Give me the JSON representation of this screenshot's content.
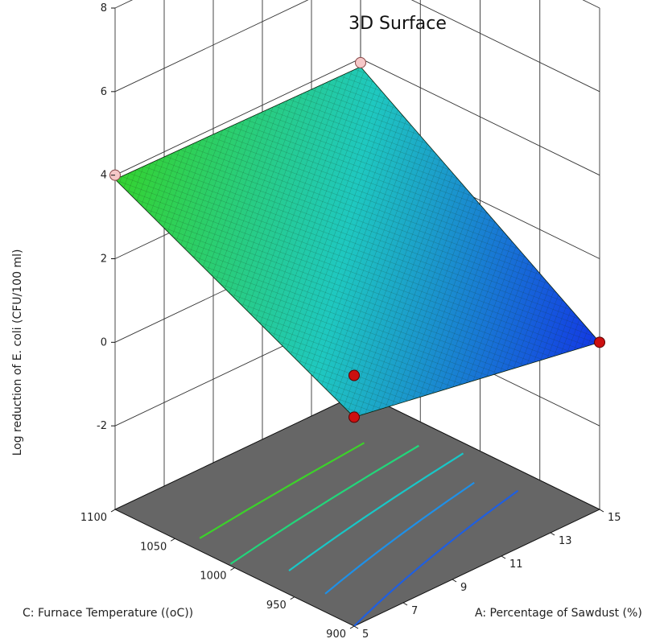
{
  "chart_data": {
    "type": "surface",
    "title": "3D Surface",
    "zlabel": "Log reduction of E. coli (CFU/100 ml)",
    "xlabel": "A: Percentage of Sawdust (%)",
    "ylabel": "C: Furnace Temperature ((oC))",
    "z_ticks": [
      "-2",
      "0",
      "2",
      "4",
      "6",
      "8"
    ],
    "x_ticks": [
      "5",
      "7",
      "9",
      "11",
      "13",
      "15"
    ],
    "y_ticks": [
      "900",
      "950",
      "1000",
      "1050",
      "1100"
    ],
    "zlim": [
      -2,
      8
    ],
    "xlim": [
      5,
      15
    ],
    "ylim": [
      900,
      1100
    ],
    "surface_corners": [
      {
        "A": 5,
        "C": 1100,
        "z": 3.9
      },
      {
        "A": 15,
        "C": 1100,
        "z": 3.8
      },
      {
        "A": 15,
        "C": 900,
        "z": 0.0
      },
      {
        "A": 5,
        "C": 900,
        "z": 1.0
      }
    ],
    "design_points": [
      {
        "A": 5,
        "C": 1100,
        "z": 4.0,
        "position": "above"
      },
      {
        "A": 15,
        "C": 1100,
        "z": 3.9,
        "position": "above"
      },
      {
        "A": 5,
        "C": 900,
        "z": 2.0,
        "position": "below"
      },
      {
        "A": 5,
        "C": 900,
        "z": 1.0,
        "position": "below"
      },
      {
        "A": 15,
        "C": 900,
        "z": 0.0,
        "position": "below"
      }
    ],
    "contour_levels": [
      1.0,
      1.5,
      2.0,
      2.5,
      3.0
    ],
    "contour_colors": [
      "#1f5fe0",
      "#1e90e8",
      "#18c7c7",
      "#22d67a",
      "#3cd22a"
    ],
    "surface_colors": {
      "low": "#1030e0",
      "mid": "#18b8d8",
      "high": "#30d030"
    },
    "floor_color": "#666666",
    "grid": true
  }
}
